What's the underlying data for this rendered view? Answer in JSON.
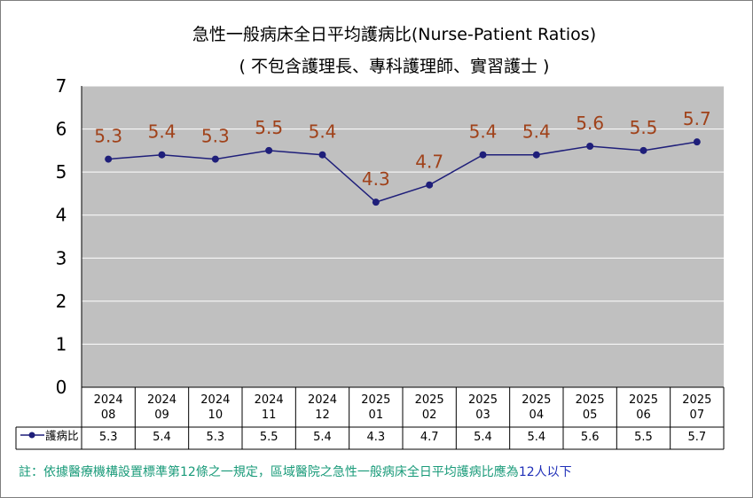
{
  "title": "急性一般病床全日平均護病比(Nurse-Patient Ratios)",
  "subtitle": "( 不包含護理長、專科護理師、實習護士 )",
  "colors": {
    "plot_bg": "#c0c0c0",
    "line": "#1f1f7a",
    "data_label": "#a0421a",
    "gridline": "#ffffff",
    "footnote": "#1a9b7a",
    "footnote_highlight": "#1f2fb8"
  },
  "chart_data": {
    "type": "line",
    "categories": [
      [
        "2024",
        "08"
      ],
      [
        "2024",
        "09"
      ],
      [
        "2024",
        "10"
      ],
      [
        "2024",
        "11"
      ],
      [
        "2024",
        "12"
      ],
      [
        "2025",
        "01"
      ],
      [
        "2025",
        "02"
      ],
      [
        "2025",
        "03"
      ],
      [
        "2025",
        "04"
      ],
      [
        "2025",
        "05"
      ],
      [
        "2025",
        "06"
      ],
      [
        "2025",
        "07"
      ]
    ],
    "series": [
      {
        "name": "護病比",
        "values": [
          5.3,
          5.4,
          5.3,
          5.5,
          5.4,
          4.3,
          4.7,
          5.4,
          5.4,
          5.6,
          5.5,
          5.7
        ]
      }
    ],
    "ylim": [
      0,
      7
    ],
    "yticks": [
      "0",
      "1",
      "2",
      "3",
      "4",
      "5",
      "6",
      "7"
    ],
    "grid": true,
    "legend": "data-table",
    "data_labels": true
  },
  "footnote": {
    "text": "註：依據醫療機構設置標準第12條之一規定，區域醫院之急性一般病床全日平均護病比應為",
    "highlight": "12人以下"
  }
}
